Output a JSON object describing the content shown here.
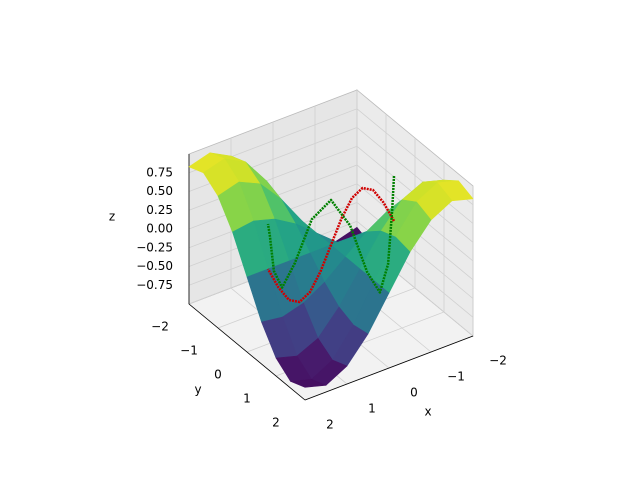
{
  "chart_data": {
    "type": "surface3d",
    "xlabel": "x",
    "ylabel": "y",
    "zlabel": "z",
    "cmap": "viridis",
    "grid": true,
    "xlim": [
      -2,
      2
    ],
    "ylim": [
      -2,
      2
    ],
    "zlim": [
      -1,
      1
    ],
    "xticks": [
      {
        "value": -2,
        "label": "−2"
      },
      {
        "value": -1,
        "label": "−1"
      },
      0,
      1,
      2
    ],
    "yticks": [
      {
        "value": -2,
        "label": "−2"
      },
      {
        "value": -1,
        "label": "−1"
      },
      0,
      1,
      2
    ],
    "zticks": [
      {
        "value": -0.75,
        "label": "−0.75"
      },
      {
        "value": -0.5,
        "label": "−0.50"
      },
      {
        "value": -0.25,
        "label": "−0.25"
      },
      {
        "value": 0,
        "label": "0.00"
      },
      0.25,
      {
        "value": 0.5,
        "label": "0.50"
      },
      0.75
    ],
    "surface": {
      "x": [
        -2,
        -1.5,
        -1,
        -0.5,
        0,
        0.5,
        1,
        1.5,
        2
      ],
      "y": [
        -2,
        -1.5,
        -1,
        -0.5,
        0,
        0.5,
        1,
        1.5,
        2
      ],
      "z": [
        [
          -0.83,
          -0.91,
          -0.76,
          -0.44,
          0,
          0.44,
          0.76,
          0.91,
          0.83
        ],
        [
          -0.91,
          -0.99,
          -0.84,
          -0.48,
          0,
          0.48,
          0.84,
          0.99,
          0.91
        ],
        [
          -0.76,
          -0.84,
          -0.71,
          -0.4,
          0,
          0.4,
          0.71,
          0.84,
          0.76
        ],
        [
          -0.44,
          -0.48,
          -0.4,
          -0.23,
          0,
          0.23,
          0.4,
          0.48,
          0.44
        ],
        [
          0,
          0,
          0,
          0,
          0,
          0,
          0,
          0,
          0
        ],
        [
          0.44,
          0.48,
          0.4,
          0.23,
          0,
          -0.23,
          -0.4,
          -0.48,
          -0.44
        ],
        [
          0.76,
          0.84,
          0.71,
          0.4,
          0,
          -0.4,
          -0.71,
          -0.84,
          -0.76
        ],
        [
          0.91,
          0.99,
          0.84,
          0.48,
          0,
          -0.48,
          -0.84,
          -0.99,
          -0.91
        ],
        [
          0.83,
          0.91,
          0.76,
          0.44,
          0,
          -0.44,
          -0.76,
          -0.91,
          -0.83
        ]
      ]
    },
    "lines": [
      {
        "color": "#d00000",
        "xs": [
          -1.5,
          -1.25,
          -1,
          -0.75,
          -0.5,
          -0.25,
          0,
          0.25,
          0.5,
          0.75,
          1,
          1.25,
          1.5
        ],
        "ys": [
          0,
          0,
          0,
          0,
          0,
          0,
          0,
          0,
          0,
          0,
          0,
          0,
          0
        ],
        "zs": [
          0,
          0.3,
          0.52,
          0.6,
          0.52,
          0.3,
          0,
          -0.3,
          -0.52,
          -0.6,
          -0.52,
          -0.3,
          0
        ]
      },
      {
        "color": "#008000",
        "xs": [
          -1.5,
          -1.25,
          -1,
          -0.75,
          -0.5,
          -0.25,
          0,
          0.25,
          0.5,
          0.75,
          1,
          1.25,
          1.5
        ],
        "ys": [
          0,
          0.3,
          0.52,
          0.6,
          0.52,
          0.3,
          0,
          -0.3,
          -0.52,
          -0.6,
          -0.52,
          -0.3,
          0
        ],
        "zs": [
          0.6,
          0.3,
          -0.3,
          -0.6,
          -0.3,
          0.3,
          0.6,
          0.3,
          -0.3,
          -0.6,
          -0.3,
          0.3,
          0.6
        ]
      }
    ]
  }
}
